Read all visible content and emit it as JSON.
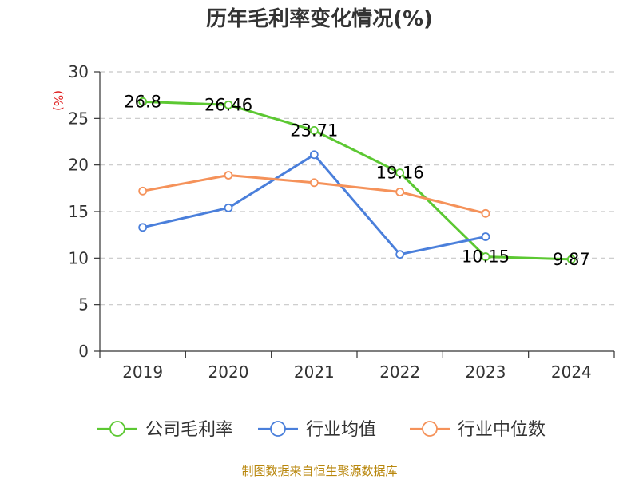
{
  "chart_data": {
    "type": "line",
    "title": "历年毛利率变化情况(%)",
    "ylabel": "(%)",
    "xlabel": "",
    "categories": [
      "2019",
      "2020",
      "2021",
      "2022",
      "2023",
      "2024"
    ],
    "ylim": [
      0,
      30
    ],
    "yticks": [
      0,
      5,
      10,
      15,
      20,
      25,
      30
    ],
    "grid": "horizontal dashed",
    "legend_position": "bottom",
    "series": [
      {
        "name": "公司毛利率",
        "color": "#5cc832",
        "values": [
          26.8,
          26.46,
          23.71,
          19.16,
          10.15,
          9.87
        ],
        "data_labels": [
          "26.8",
          "26.46",
          "23.71",
          "19.16",
          "10.15",
          "9.87"
        ]
      },
      {
        "name": "行业均值",
        "color": "#4a7fdb",
        "values": [
          13.3,
          15.4,
          21.1,
          10.4,
          12.3,
          null
        ]
      },
      {
        "name": "行业中位数",
        "color": "#f5925a",
        "values": [
          17.2,
          18.9,
          18.1,
          17.1,
          14.8,
          null
        ]
      }
    ]
  },
  "footer": {
    "source": "制图数据来自恒生聚源数据库"
  }
}
